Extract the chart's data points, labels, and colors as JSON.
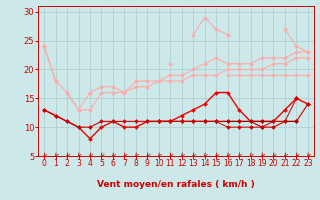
{
  "x": [
    0,
    1,
    2,
    3,
    4,
    5,
    6,
    7,
    8,
    9,
    10,
    11,
    12,
    13,
    14,
    15,
    16,
    17,
    18,
    19,
    20,
    21,
    22,
    23
  ],
  "series": [
    {
      "name": "pink_spike",
      "color": "#ffaaaa",
      "linewidth": 0.8,
      "marker": "D",
      "markersize": 2,
      "values": [
        24,
        18,
        null,
        null,
        null,
        null,
        null,
        null,
        null,
        null,
        null,
        21,
        null,
        26,
        29,
        27,
        26,
        null,
        null,
        null,
        null,
        27,
        24,
        23
      ]
    },
    {
      "name": "pink_upper",
      "color": "#ffaaaa",
      "linewidth": 0.8,
      "marker": "D",
      "markersize": 2,
      "values": [
        24,
        18,
        16,
        13,
        16,
        17,
        17,
        16,
        18,
        18,
        18,
        19,
        19,
        20,
        21,
        22,
        21,
        21,
        21,
        22,
        22,
        22,
        23,
        23
      ]
    },
    {
      "name": "pink_mid1",
      "color": "#ffaaaa",
      "linewidth": 0.8,
      "marker": "D",
      "markersize": 2,
      "values": [
        null,
        null,
        16,
        13,
        13,
        16,
        16,
        16,
        17,
        17,
        18,
        18,
        18,
        19,
        19,
        19,
        20,
        20,
        20,
        20,
        21,
        21,
        22,
        22
      ]
    },
    {
      "name": "pink_mid2",
      "color": "#ffaaaa",
      "linewidth": 0.8,
      "marker": "D",
      "markersize": 2,
      "values": [
        null,
        null,
        null,
        null,
        null,
        null,
        null,
        null,
        null,
        null,
        null,
        null,
        null,
        null,
        null,
        null,
        19,
        19,
        19,
        19,
        19,
        19,
        19,
        19
      ]
    },
    {
      "name": "red_wavy",
      "color": "#ee0000",
      "linewidth": 1.0,
      "marker": "D",
      "markersize": 2,
      "values": [
        13,
        12,
        11,
        10,
        8,
        10,
        11,
        10,
        10,
        11,
        11,
        11,
        12,
        13,
        14,
        16,
        16,
        13,
        11,
        11,
        11,
        13,
        15,
        14
      ]
    },
    {
      "name": "red_flat1",
      "color": "#cc0000",
      "linewidth": 0.8,
      "marker": "D",
      "markersize": 2,
      "values": [
        13,
        12,
        11,
        10,
        10,
        11,
        11,
        11,
        11,
        11,
        11,
        11,
        11,
        11,
        11,
        11,
        11,
        11,
        11,
        11,
        11,
        11,
        11,
        14
      ]
    },
    {
      "name": "red_flat2",
      "color": "#cc0000",
      "linewidth": 0.8,
      "marker": "D",
      "markersize": 2,
      "values": [
        null,
        null,
        null,
        null,
        null,
        null,
        null,
        null,
        null,
        null,
        11,
        11,
        11,
        11,
        11,
        11,
        11,
        11,
        11,
        10,
        10,
        11,
        11,
        null
      ]
    },
    {
      "name": "dark_flat",
      "color": "#990000",
      "linewidth": 0.7,
      "marker": null,
      "markersize": 0,
      "values": [
        null,
        null,
        null,
        null,
        null,
        null,
        null,
        null,
        null,
        null,
        11,
        11,
        11,
        11,
        11,
        11,
        11,
        11,
        11,
        11,
        11,
        11,
        11,
        null
      ]
    },
    {
      "name": "red_bottom",
      "color": "#cc0000",
      "linewidth": 0.7,
      "marker": "D",
      "markersize": 2,
      "values": [
        null,
        null,
        null,
        null,
        null,
        null,
        null,
        null,
        null,
        null,
        11,
        11,
        11,
        11,
        11,
        11,
        10,
        10,
        10,
        10,
        11,
        11,
        15,
        null
      ]
    }
  ],
  "xlabel": "Vent moyen/en rafales ( km/h )",
  "xlim": [
    -0.5,
    23.5
  ],
  "ylim": [
    5,
    31
  ],
  "yticks": [
    5,
    10,
    15,
    20,
    25,
    30
  ],
  "xticks": [
    0,
    1,
    2,
    3,
    4,
    5,
    6,
    7,
    8,
    9,
    10,
    11,
    12,
    13,
    14,
    15,
    16,
    17,
    18,
    19,
    20,
    21,
    22,
    23
  ],
  "bg_color": "#cce8e8",
  "grid_color": "#aacccc",
  "xlabel_color": "#cc0000",
  "tick_color": "#cc0000",
  "arrow_color": "#cc0000",
  "spine_color": "#cc0000"
}
